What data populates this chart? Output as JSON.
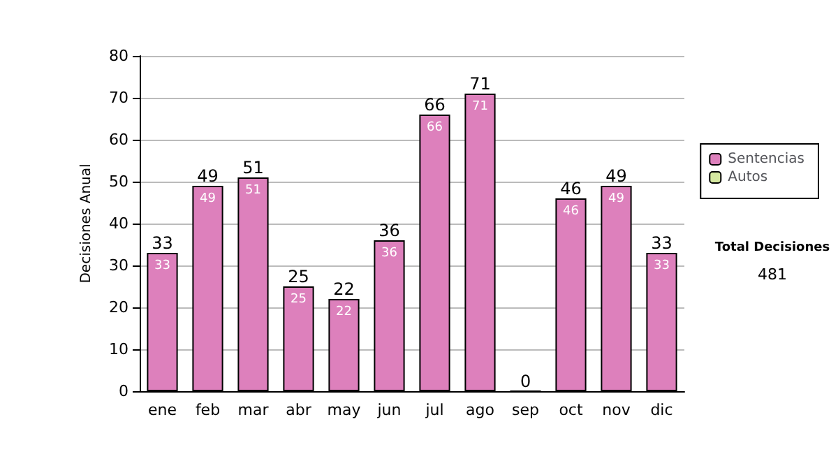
{
  "chart_data": {
    "type": "bar",
    "ylabel": "Decisiones Anual",
    "categories": [
      "ene",
      "feb",
      "mar",
      "abr",
      "may",
      "jun",
      "jul",
      "ago",
      "sep",
      "oct",
      "nov",
      "dic"
    ],
    "stacked": true,
    "series": [
      {
        "name": "Sentencias",
        "color": "#dd80bc",
        "values": [
          33,
          49,
          51,
          25,
          22,
          36,
          66,
          71,
          0,
          46,
          49,
          33
        ],
        "value_labels": [
          "33",
          "49",
          "51",
          "25",
          "22",
          "36",
          "66",
          "71",
          null,
          "46",
          "49",
          "33"
        ]
      },
      {
        "name": "Autos",
        "color": "#d5e8a0",
        "values": [
          0,
          0,
          0,
          0,
          0,
          0,
          0,
          0,
          0,
          0,
          0,
          0
        ]
      }
    ],
    "totals": [
      "33",
      "49",
      "51",
      "25",
      "22",
      "36",
      "66",
      "71",
      "0",
      "46",
      "49",
      "33"
    ],
    "ylim": [
      0,
      80
    ],
    "yticks": [
      0,
      10,
      20,
      30,
      40,
      50,
      60,
      70,
      80
    ],
    "grid": "y",
    "legend": "right",
    "annotations": [
      "Total Decisiones",
      "481"
    ]
  }
}
